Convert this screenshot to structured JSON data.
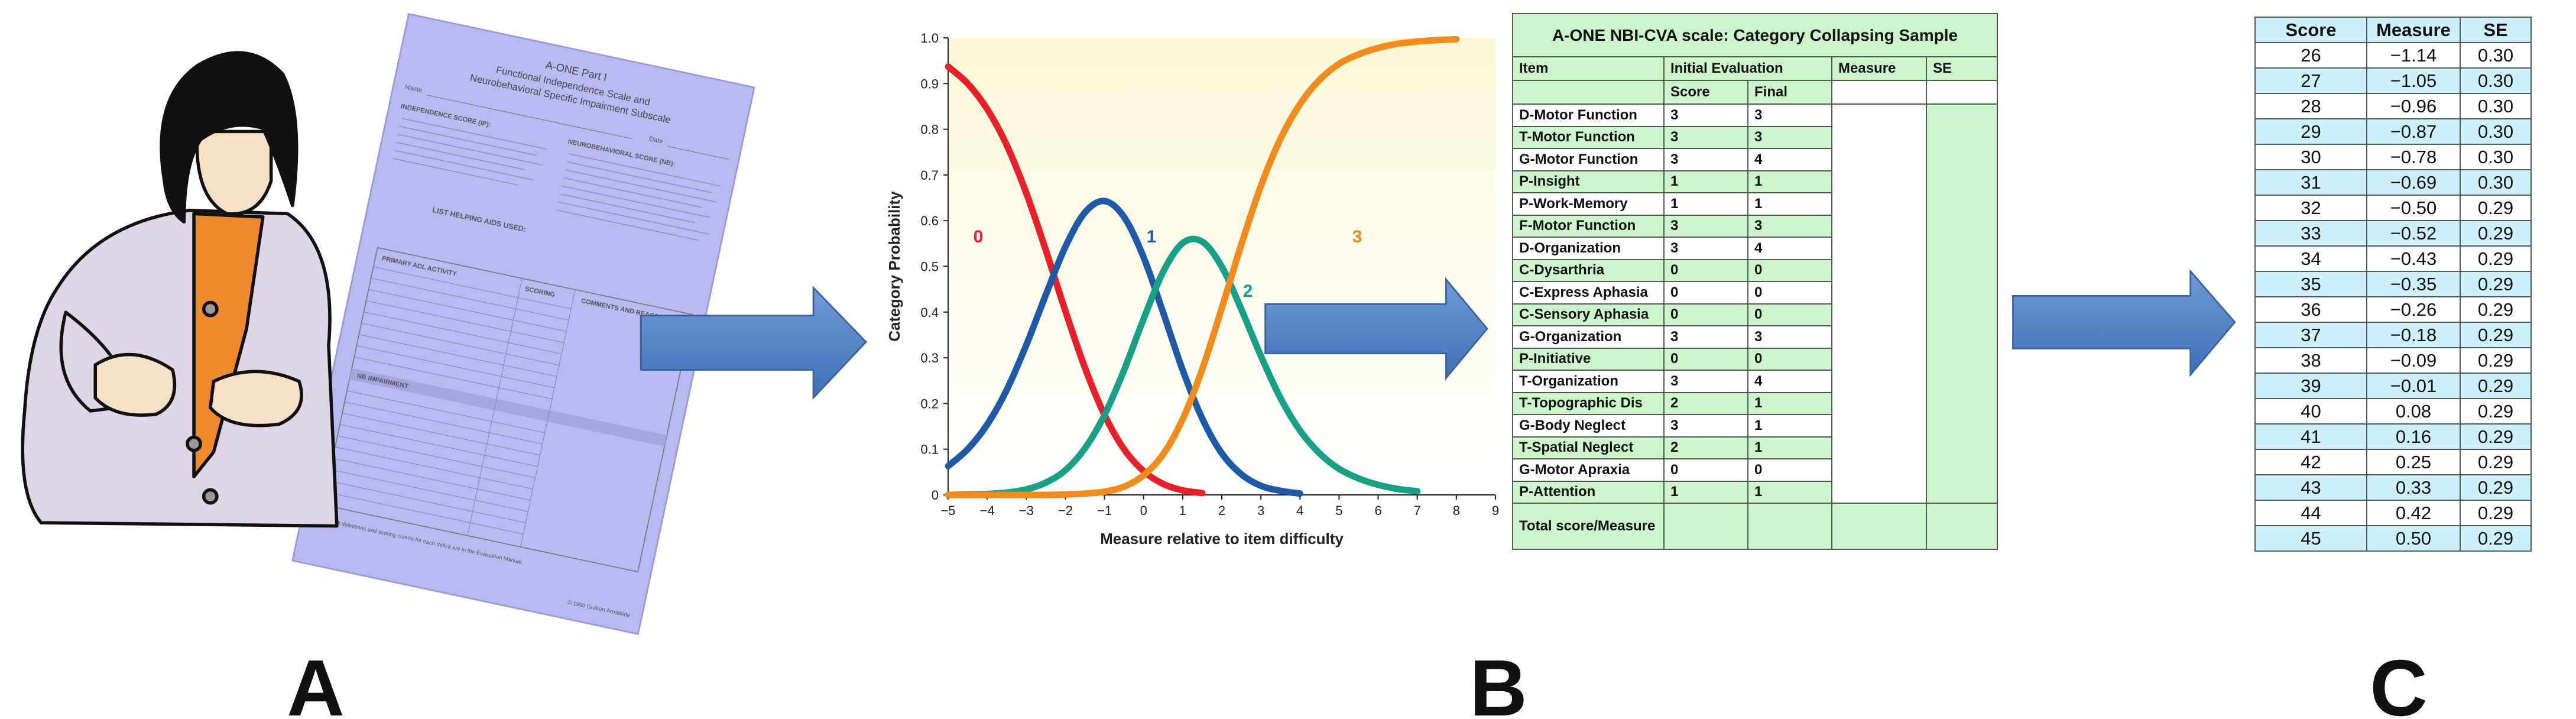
{
  "panel_labels": [
    "A",
    "B",
    "C"
  ],
  "form": {
    "title": "A-ONE Part I",
    "subtitle_1": "Functional Independence Scale and",
    "subtitle_2": "Neurobehavioral Specific Impairment Subscale",
    "name": "Name",
    "date": "Date",
    "independence": "INDEPENDENCE SCORE (IP):",
    "neuro": "NEUROBEHAVIORAL SCORE (NB):",
    "aids": "LIST HELPING AIDS USED:",
    "adl": "PRIMARY ADL ACTIVITY",
    "scoring": "SCORING",
    "comments": "COMMENTS AND REASONING",
    "impairment": "NB IMPAIRMENT",
    "note": "Note: All definitions and scoring criteria for each deficit are in the Evaluation Manual.",
    "copyright": "© 1990 Guðrún Árnadóttir"
  },
  "chart_data": {
    "type": "line",
    "x_label": "Measure relative to item difficulty",
    "y_label": "Category Probability",
    "x": [
      -5,
      -4.5,
      -4,
      -3.5,
      -3,
      -2.5,
      -2,
      -1.5,
      -1,
      -0.5,
      0,
      0.5,
      1,
      1.5,
      2,
      2.5,
      3,
      3.5,
      4,
      4.5,
      5,
      5.5,
      6,
      6.5,
      7,
      7.5,
      8
    ],
    "series": [
      {
        "name": "0",
        "color": "#e8202a",
        "values": [
          0.937,
          0.9,
          0.844,
          0.765,
          0.66,
          0.535,
          0.402,
          0.278,
          0.175,
          0.1,
          0.052,
          0.024,
          0.01,
          0.004,
          null,
          null,
          null,
          null,
          null,
          null,
          null,
          null,
          null,
          null,
          null,
          null,
          null
        ]
      },
      {
        "name": "1",
        "color": "#1f5aa8",
        "values": [
          0.063,
          0.1,
          0.154,
          0.23,
          0.328,
          0.438,
          0.543,
          0.618,
          0.643,
          0.608,
          0.52,
          0.399,
          0.273,
          0.167,
          0.091,
          0.045,
          0.02,
          0.009,
          0.003,
          null,
          null,
          null,
          null,
          null,
          null,
          null,
          null
        ]
      },
      {
        "name": "2",
        "color": "#17a086",
        "values": [
          0,
          0.001,
          0.002,
          0.005,
          0.012,
          0.027,
          0.054,
          0.102,
          0.175,
          0.273,
          0.385,
          0.488,
          0.551,
          0.554,
          0.499,
          0.406,
          0.304,
          0.212,
          0.141,
          0.091,
          0.057,
          0.036,
          0.022,
          0.013,
          0.008,
          null,
          null
        ]
      },
      {
        "name": "3",
        "color": "#f28a1c",
        "values": [
          0,
          0,
          0,
          0,
          0,
          0,
          0.001,
          0.003,
          0.007,
          0.018,
          0.043,
          0.089,
          0.166,
          0.275,
          0.409,
          0.548,
          0.676,
          0.779,
          0.855,
          0.908,
          0.943,
          0.964,
          0.978,
          0.987,
          0.992,
          0.995,
          0.997
        ]
      }
    ],
    "xlim": [
      -5,
      9
    ],
    "ylim": [
      0,
      1
    ],
    "xticks": [
      {
        "value": -5,
        "label": "−5"
      },
      {
        "value": -4,
        "label": "−4"
      },
      {
        "value": -3,
        "label": "−3"
      },
      {
        "value": -2,
        "label": "−2"
      },
      {
        "value": -1,
        "label": "−1"
      },
      0,
      1,
      2,
      3,
      4,
      5,
      6,
      7,
      8,
      9
    ],
    "yticks": [
      0,
      0.1,
      0.2,
      0.3,
      0.4,
      0.5,
      0.6,
      0.7,
      0.8,
      0.9,
      {
        "value": 1,
        "label": "1.0"
      }
    ],
    "grid": false
  },
  "table_b": {
    "title": "A-ONE NBI-CVA scale: Category Collapsing Sample",
    "item": "Item",
    "initial": "Initial Evaluation",
    "measure": "Measure",
    "se": "SE",
    "score": "Score",
    "final": "Final",
    "rows": [
      [
        "D-Motor Function",
        3,
        3
      ],
      [
        "T-Motor Function",
        3,
        3
      ],
      [
        "G-Motor Function",
        3,
        4
      ],
      [
        "P-Insight",
        1,
        1
      ],
      [
        "P-Work-Memory",
        1,
        1
      ],
      [
        "F-Motor Function",
        3,
        3
      ],
      [
        "D-Organization",
        3,
        4
      ],
      [
        "C-Dysarthria",
        0,
        0
      ],
      [
        "C-Express Aphasia",
        0,
        0
      ],
      [
        "C-Sensory Aphasia",
        0,
        0
      ],
      [
        "G-Organization",
        3,
        3
      ],
      [
        "P-Initiative",
        0,
        0
      ],
      [
        "T-Organization",
        3,
        4
      ],
      [
        "T-Topographic Dis",
        2,
        1
      ],
      [
        "G-Body Neglect",
        3,
        1
      ],
      [
        "T-Spatial Neglect",
        2,
        1
      ],
      [
        "G-Motor Apraxia",
        0,
        0
      ],
      [
        "P-Attention",
        1,
        1
      ]
    ],
    "total": "Total score/Measure"
  },
  "table_c": {
    "header": [
      "Score",
      "Measure",
      "SE"
    ],
    "rows": [
      [
        "26",
        "−1.14",
        "0.30"
      ],
      [
        "27",
        "−1.05",
        "0.30"
      ],
      [
        "28",
        "−0.96",
        "0.30"
      ],
      [
        "29",
        "−0.87",
        "0.30"
      ],
      [
        "30",
        "−0.78",
        "0.30"
      ],
      [
        "31",
        "−0.69",
        "0.30"
      ],
      [
        "32",
        "−0.50",
        "0.29"
      ],
      [
        "33",
        "−0.52",
        "0.29"
      ],
      [
        "34",
        "−0.43",
        "0.29"
      ],
      [
        "35",
        "−0.35",
        "0.29"
      ],
      [
        "36",
        "−0.26",
        "0.29"
      ],
      [
        "37",
        "−0.18",
        "0.29"
      ],
      [
        "38",
        "−0.09",
        "0.29"
      ],
      [
        "39",
        "−0.01",
        "0.29"
      ],
      [
        "40",
        "0.08",
        "0.29"
      ],
      [
        "41",
        "0.16",
        "0.29"
      ],
      [
        "42",
        "0.25",
        "0.29"
      ],
      [
        "43",
        "0.33",
        "0.29"
      ],
      [
        "44",
        "0.42",
        "0.29"
      ],
      [
        "45",
        "0.50",
        "0.29"
      ]
    ]
  }
}
